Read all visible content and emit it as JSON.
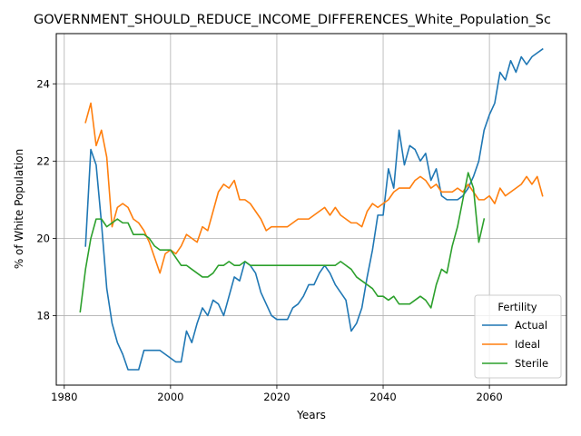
{
  "chart_data": {
    "type": "line",
    "title": "GOVERNMENT_SHOULD_REDUCE_INCOME_DIFFERENCES_White_Population_Sc",
    "xlabel": "Years",
    "ylabel": "% of White Population",
    "xlim": [
      1978.5,
      2074.5
    ],
    "ylim": [
      16.2,
      25.3
    ],
    "xticks": [
      1980,
      2000,
      2020,
      2040,
      2060
    ],
    "yticks": [
      18,
      20,
      22,
      24
    ],
    "grid": true,
    "legend": {
      "title": "Fertility",
      "position": "lower right"
    },
    "series": [
      {
        "name": "Actual",
        "color": "#1f77b4",
        "points": [
          [
            1984,
            19.8
          ],
          [
            1985,
            22.3
          ],
          [
            1986,
            21.9
          ],
          [
            1987,
            20.4
          ],
          [
            1988,
            18.7
          ],
          [
            1989,
            17.8
          ],
          [
            1990,
            17.3
          ],
          [
            1991,
            17.0
          ],
          [
            1992,
            16.6
          ],
          [
            1993,
            16.6
          ],
          [
            1994,
            16.6
          ],
          [
            1995,
            17.1
          ],
          [
            1996,
            17.1
          ],
          [
            1997,
            17.1
          ],
          [
            1998,
            17.1
          ],
          [
            1999,
            17.0
          ],
          [
            2000,
            16.9
          ],
          [
            2001,
            16.8
          ],
          [
            2002,
            16.8
          ],
          [
            2003,
            17.6
          ],
          [
            2004,
            17.3
          ],
          [
            2005,
            17.8
          ],
          [
            2006,
            18.2
          ],
          [
            2007,
            18.0
          ],
          [
            2008,
            18.4
          ],
          [
            2009,
            18.3
          ],
          [
            2010,
            18.0
          ],
          [
            2011,
            18.5
          ],
          [
            2012,
            19.0
          ],
          [
            2013,
            18.9
          ],
          [
            2014,
            19.4
          ],
          [
            2015,
            19.3
          ],
          [
            2016,
            19.1
          ],
          [
            2017,
            18.6
          ],
          [
            2018,
            18.3
          ],
          [
            2019,
            18.0
          ],
          [
            2020,
            17.9
          ],
          [
            2021,
            17.9
          ],
          [
            2022,
            17.9
          ],
          [
            2023,
            18.2
          ],
          [
            2024,
            18.3
          ],
          [
            2025,
            18.5
          ],
          [
            2026,
            18.8
          ],
          [
            2027,
            18.8
          ],
          [
            2028,
            19.1
          ],
          [
            2029,
            19.3
          ],
          [
            2030,
            19.1
          ],
          [
            2031,
            18.8
          ],
          [
            2032,
            18.6
          ],
          [
            2033,
            18.4
          ],
          [
            2034,
            17.6
          ],
          [
            2035,
            17.8
          ],
          [
            2036,
            18.2
          ],
          [
            2037,
            19.0
          ],
          [
            2038,
            19.7
          ],
          [
            2039,
            20.6
          ],
          [
            2040,
            20.6
          ],
          [
            2041,
            21.8
          ],
          [
            2042,
            21.3
          ],
          [
            2043,
            22.8
          ],
          [
            2044,
            21.9
          ],
          [
            2045,
            22.4
          ],
          [
            2046,
            22.3
          ],
          [
            2047,
            22.0
          ],
          [
            2048,
            22.2
          ],
          [
            2049,
            21.5
          ],
          [
            2050,
            21.8
          ],
          [
            2051,
            21.1
          ],
          [
            2052,
            21.0
          ],
          [
            2053,
            21.0
          ],
          [
            2054,
            21.0
          ],
          [
            2055,
            21.1
          ],
          [
            2056,
            21.3
          ],
          [
            2057,
            21.6
          ],
          [
            2058,
            22.0
          ],
          [
            2059,
            22.8
          ],
          [
            2060,
            23.2
          ],
          [
            2061,
            23.5
          ],
          [
            2062,
            24.3
          ],
          [
            2063,
            24.1
          ],
          [
            2064,
            24.6
          ],
          [
            2065,
            24.3
          ],
          [
            2066,
            24.7
          ],
          [
            2067,
            24.5
          ],
          [
            2068,
            24.7
          ],
          [
            2069,
            24.8
          ],
          [
            2070,
            24.9
          ]
        ]
      },
      {
        "name": "Ideal",
        "color": "#ff7f0e",
        "points": [
          [
            1984,
            23.0
          ],
          [
            1985,
            23.5
          ],
          [
            1986,
            22.4
          ],
          [
            1987,
            22.8
          ],
          [
            1988,
            22.1
          ],
          [
            1989,
            20.3
          ],
          [
            1990,
            20.8
          ],
          [
            1991,
            20.9
          ],
          [
            1992,
            20.8
          ],
          [
            1993,
            20.5
          ],
          [
            1994,
            20.4
          ],
          [
            1995,
            20.2
          ],
          [
            1996,
            19.9
          ],
          [
            1997,
            19.5
          ],
          [
            1998,
            19.1
          ],
          [
            1999,
            19.6
          ],
          [
            2000,
            19.7
          ],
          [
            2001,
            19.6
          ],
          [
            2002,
            19.8
          ],
          [
            2003,
            20.1
          ],
          [
            2004,
            20.0
          ],
          [
            2005,
            19.9
          ],
          [
            2006,
            20.3
          ],
          [
            2007,
            20.2
          ],
          [
            2008,
            20.7
          ],
          [
            2009,
            21.2
          ],
          [
            2010,
            21.4
          ],
          [
            2011,
            21.3
          ],
          [
            2012,
            21.5
          ],
          [
            2013,
            21.0
          ],
          [
            2014,
            21.0
          ],
          [
            2015,
            20.9
          ],
          [
            2016,
            20.7
          ],
          [
            2017,
            20.5
          ],
          [
            2018,
            20.2
          ],
          [
            2019,
            20.3
          ],
          [
            2020,
            20.3
          ],
          [
            2021,
            20.3
          ],
          [
            2022,
            20.3
          ],
          [
            2023,
            20.4
          ],
          [
            2024,
            20.5
          ],
          [
            2025,
            20.5
          ],
          [
            2026,
            20.5
          ],
          [
            2027,
            20.6
          ],
          [
            2028,
            20.7
          ],
          [
            2029,
            20.8
          ],
          [
            2030,
            20.6
          ],
          [
            2031,
            20.8
          ],
          [
            2032,
            20.6
          ],
          [
            2033,
            20.5
          ],
          [
            2034,
            20.4
          ],
          [
            2035,
            20.4
          ],
          [
            2036,
            20.3
          ],
          [
            2037,
            20.7
          ],
          [
            2038,
            20.9
          ],
          [
            2039,
            20.8
          ],
          [
            2040,
            20.9
          ],
          [
            2041,
            21.0
          ],
          [
            2042,
            21.2
          ],
          [
            2043,
            21.3
          ],
          [
            2044,
            21.3
          ],
          [
            2045,
            21.3
          ],
          [
            2046,
            21.5
          ],
          [
            2047,
            21.6
          ],
          [
            2048,
            21.5
          ],
          [
            2049,
            21.3
          ],
          [
            2050,
            21.4
          ],
          [
            2051,
            21.2
          ],
          [
            2052,
            21.2
          ],
          [
            2053,
            21.2
          ],
          [
            2054,
            21.3
          ],
          [
            2055,
            21.2
          ],
          [
            2056,
            21.4
          ],
          [
            2057,
            21.2
          ],
          [
            2058,
            21.0
          ],
          [
            2059,
            21.0
          ],
          [
            2060,
            21.1
          ],
          [
            2061,
            20.9
          ],
          [
            2062,
            21.3
          ],
          [
            2063,
            21.1
          ],
          [
            2064,
            21.2
          ],
          [
            2065,
            21.3
          ],
          [
            2066,
            21.4
          ],
          [
            2067,
            21.6
          ],
          [
            2068,
            21.4
          ],
          [
            2069,
            21.6
          ],
          [
            2070,
            21.1
          ]
        ]
      },
      {
        "name": "Sterile",
        "color": "#2ca02c",
        "points": [
          [
            1983,
            18.1
          ],
          [
            1984,
            19.2
          ],
          [
            1985,
            20.0
          ],
          [
            1986,
            20.5
          ],
          [
            1987,
            20.5
          ],
          [
            1988,
            20.3
          ],
          [
            1989,
            20.4
          ],
          [
            1990,
            20.5
          ],
          [
            1991,
            20.4
          ],
          [
            1992,
            20.4
          ],
          [
            1993,
            20.1
          ],
          [
            1994,
            20.1
          ],
          [
            1995,
            20.1
          ],
          [
            1996,
            20.0
          ],
          [
            1997,
            19.8
          ],
          [
            1998,
            19.7
          ],
          [
            1999,
            19.7
          ],
          [
            2000,
            19.7
          ],
          [
            2001,
            19.5
          ],
          [
            2002,
            19.3
          ],
          [
            2003,
            19.3
          ],
          [
            2004,
            19.2
          ],
          [
            2005,
            19.1
          ],
          [
            2006,
            19.0
          ],
          [
            2007,
            19.0
          ],
          [
            2008,
            19.1
          ],
          [
            2009,
            19.3
          ],
          [
            2010,
            19.3
          ],
          [
            2011,
            19.4
          ],
          [
            2012,
            19.3
          ],
          [
            2013,
            19.3
          ],
          [
            2014,
            19.4
          ],
          [
            2015,
            19.3
          ],
          [
            2016,
            19.3
          ],
          [
            2017,
            19.3
          ],
          [
            2018,
            19.3
          ],
          [
            2019,
            19.3
          ],
          [
            2020,
            19.3
          ],
          [
            2021,
            19.3
          ],
          [
            2022,
            19.3
          ],
          [
            2023,
            19.3
          ],
          [
            2024,
            19.3
          ],
          [
            2025,
            19.3
          ],
          [
            2026,
            19.3
          ],
          [
            2027,
            19.3
          ],
          [
            2028,
            19.3
          ],
          [
            2029,
            19.3
          ],
          [
            2030,
            19.3
          ],
          [
            2031,
            19.3
          ],
          [
            2032,
            19.4
          ],
          [
            2033,
            19.3
          ],
          [
            2034,
            19.2
          ],
          [
            2035,
            19.0
          ],
          [
            2036,
            18.9
          ],
          [
            2037,
            18.8
          ],
          [
            2038,
            18.7
          ],
          [
            2039,
            18.5
          ],
          [
            2040,
            18.5
          ],
          [
            2041,
            18.4
          ],
          [
            2042,
            18.5
          ],
          [
            2043,
            18.3
          ],
          [
            2044,
            18.3
          ],
          [
            2045,
            18.3
          ],
          [
            2046,
            18.4
          ],
          [
            2047,
            18.5
          ],
          [
            2048,
            18.4
          ],
          [
            2049,
            18.2
          ],
          [
            2050,
            18.8
          ],
          [
            2051,
            19.2
          ],
          [
            2052,
            19.1
          ],
          [
            2053,
            19.8
          ],
          [
            2054,
            20.3
          ],
          [
            2055,
            21.0
          ],
          [
            2056,
            21.7
          ],
          [
            2057,
            21.3
          ],
          [
            2058,
            19.9
          ],
          [
            2059,
            20.5
          ]
        ]
      }
    ]
  }
}
